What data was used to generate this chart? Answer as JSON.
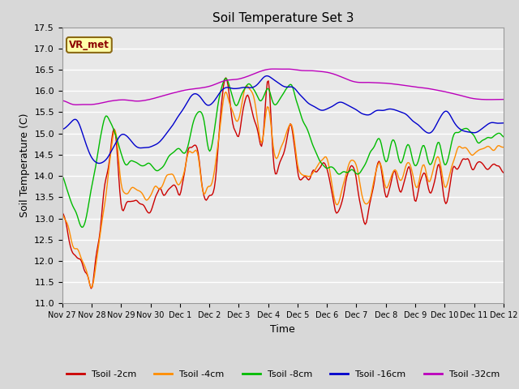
{
  "title": "Soil Temperature Set 3",
  "xlabel": "Time",
  "ylabel": "Soil Temperature (C)",
  "ylim": [
    11.0,
    17.5
  ],
  "yticks": [
    11.0,
    11.5,
    12.0,
    12.5,
    13.0,
    13.5,
    14.0,
    14.5,
    15.0,
    15.5,
    16.0,
    16.5,
    17.0,
    17.5
  ],
  "line_colors": {
    "2cm": "#CC0000",
    "4cm": "#FF8C00",
    "8cm": "#00BB00",
    "16cm": "#0000CC",
    "32cm": "#BB00BB"
  },
  "legend_labels": [
    "Tsoil -2cm",
    "Tsoil -4cm",
    "Tsoil -8cm",
    "Tsoil -16cm",
    "Tsoil -32cm"
  ],
  "linewidth": 1.0,
  "fig_bg": "#D8D8D8",
  "plot_bg": "#E8E8E8",
  "annotation_text": "VR_met",
  "annotation_color": "#8B0000",
  "annotation_bg": "#FFFFAA",
  "annotation_border": "#8B6914",
  "xtick_labels": [
    "Nov 27",
    "Nov 28",
    "Nov 29",
    "Nov 30",
    "Dec 1",
    "Dec 2",
    "Dec 3",
    "Dec 4",
    "Dec 5",
    "Dec 6",
    "Dec 7",
    "Dec 8",
    "Dec 9",
    "Dec 10",
    "Dec 11",
    "Dec 12"
  ]
}
